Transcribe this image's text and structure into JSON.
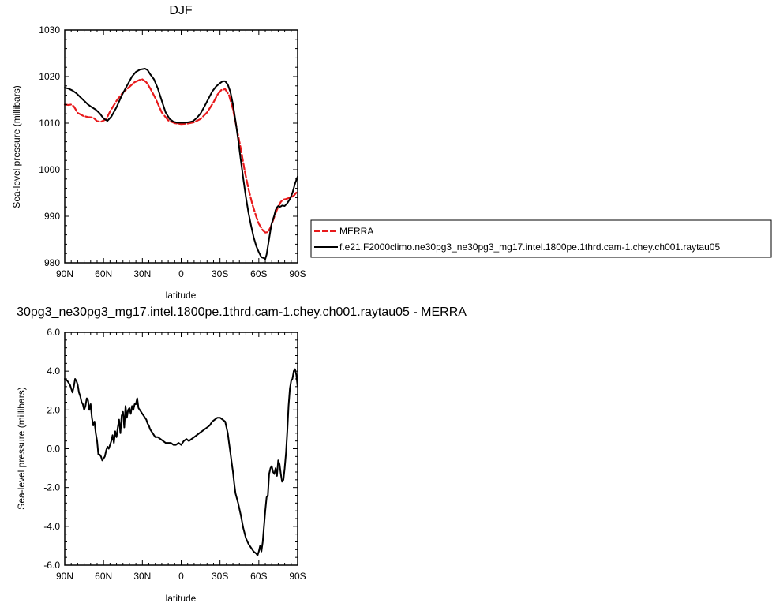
{
  "chart_data": [
    {
      "type": "line",
      "title": "DJF",
      "xlabel": "latitude",
      "ylabel": "Sea-level pressure (millibars)",
      "xlim": [
        90,
        -90
      ],
      "ylim": [
        980,
        1030
      ],
      "x_ticks": [
        90,
        60,
        30,
        0,
        -30,
        -60,
        -90
      ],
      "x_tick_labels": [
        "90N",
        "60N",
        "30N",
        "0",
        "30S",
        "60S",
        "90S"
      ],
      "y_ticks": [
        980,
        990,
        1000,
        1010,
        1020,
        1030
      ],
      "y_tick_labels": [
        "980",
        "990",
        "1000",
        "1010",
        "1020",
        "1030"
      ],
      "grid": false,
      "legend_position": "right",
      "series": [
        {
          "name": "MERRA",
          "color": "#e8191b",
          "dash": "dashed",
          "x": [
            90,
            87,
            85,
            83,
            80,
            76,
            72,
            68,
            65,
            62,
            58,
            55,
            50,
            45,
            40,
            36,
            32,
            30,
            27,
            24,
            20,
            15,
            10,
            5,
            0,
            -5,
            -10,
            -15,
            -20,
            -25,
            -28,
            -31,
            -34,
            -37,
            -40,
            -43,
            -46,
            -49,
            -52,
            -55,
            -58,
            -60,
            -63,
            -65,
            -67,
            -69,
            -71,
            -73,
            -75,
            -77,
            -79,
            -81,
            -83,
            -85,
            -87,
            -90
          ],
          "y": [
            1014,
            1013.9,
            1014,
            1013.6,
            1012.2,
            1011.6,
            1011.3,
            1011.2,
            1010.4,
            1010.3,
            1010.8,
            1012.5,
            1014.8,
            1016.6,
            1017.8,
            1018.8,
            1019.3,
            1019.4,
            1018.8,
            1017.5,
            1015.4,
            1012.3,
            1010.6,
            1010.0,
            1009.8,
            1009.9,
            1010.2,
            1010.9,
            1012.3,
            1014.5,
            1016.1,
            1017.1,
            1017.3,
            1016.0,
            1013.0,
            1008.8,
            1004.6,
            999.9,
            995.9,
            992.6,
            989.9,
            988.4,
            987.0,
            986.5,
            986.6,
            987.6,
            989.1,
            990.7,
            992.0,
            993.1,
            993.6,
            993.7,
            993.9,
            994.1,
            994.4,
            995.4
          ]
        },
        {
          "name": "f.e21.F2000climo.ne30pg3_ne30pg3_mg17.intel.1800pe.1thrd.cam-1.chey.ch001.raytau05",
          "color": "#000000",
          "dash": "solid",
          "x": [
            90,
            87,
            84,
            81,
            78,
            75,
            72,
            69,
            66,
            63,
            60,
            57,
            54,
            50,
            46,
            42,
            38,
            35,
            32,
            30,
            28,
            26,
            24,
            21,
            18,
            15,
            12,
            9,
            6,
            3,
            0,
            -3,
            -6,
            -9,
            -12,
            -15,
            -18,
            -21,
            -24,
            -27,
            -30,
            -32,
            -34,
            -36,
            -38,
            -40,
            -42,
            -44,
            -46,
            -48,
            -50,
            -52,
            -54,
            -56,
            -58,
            -60,
            -62,
            -64,
            -65,
            -66,
            -67,
            -68,
            -69,
            -70,
            -72,
            -73,
            -74,
            -75,
            -76,
            -77,
            -78,
            -80,
            -82,
            -84,
            -86,
            -88,
            -90
          ],
          "y": [
            1017.6,
            1017.4,
            1017.0,
            1016.4,
            1015.6,
            1014.8,
            1014.0,
            1013.4,
            1012.9,
            1012.1,
            1011.0,
            1010.5,
            1011.4,
            1013.4,
            1015.9,
            1018.0,
            1020.0,
            1021.0,
            1021.5,
            1021.6,
            1021.7,
            1021.4,
            1020.5,
            1019.4,
            1017.4,
            1014.8,
            1012.3,
            1010.9,
            1010.3,
            1010.1,
            1010.1,
            1010.1,
            1010.2,
            1010.4,
            1011.1,
            1012.1,
            1013.6,
            1015.2,
            1016.8,
            1017.9,
            1018.6,
            1019.0,
            1019.0,
            1018.3,
            1016.7,
            1014.0,
            1010.5,
            1006.6,
            1002.2,
            998.0,
            994.2,
            990.8,
            988.0,
            985.5,
            983.6,
            982.3,
            981.2,
            981.0,
            980.8,
            981.8,
            983.5,
            985.2,
            987.0,
            988.5,
            990.2,
            991.3,
            991.9,
            992.2,
            992.0,
            992.1,
            992.3,
            992.2,
            992.8,
            993.7,
            995.0,
            997.0,
            998.5
          ]
        }
      ]
    },
    {
      "type": "line",
      "title": "30pg3_ne30pg3_mg17.intel.1800pe.1thrd.cam-1.chey.ch001.raytau05 - MERRA",
      "xlabel": "latitude",
      "ylabel": "Sea-level pressure (millibars)",
      "xlim": [
        90,
        -90
      ],
      "ylim": [
        -6,
        6
      ],
      "x_ticks": [
        90,
        60,
        30,
        0,
        -30,
        -60,
        -90
      ],
      "x_tick_labels": [
        "90N",
        "60N",
        "30N",
        "0",
        "30S",
        "60S",
        "90S"
      ],
      "y_ticks": [
        -6,
        -4,
        -2,
        0,
        2,
        4,
        6
      ],
      "y_tick_labels": [
        "-6.0",
        "-4.0",
        "-2.0",
        "0.0",
        "2.0",
        "4.0",
        "6.0"
      ],
      "grid": false,
      "series": [
        {
          "color": "#000000",
          "dash": "solid",
          "x": [
            90,
            88,
            86,
            84,
            83,
            82,
            81,
            80,
            79,
            78,
            77,
            76,
            75,
            74,
            73,
            72,
            71,
            70,
            69,
            68,
            67,
            66,
            65,
            64,
            63,
            62,
            61,
            60,
            59,
            58,
            57,
            56,
            55,
            54,
            53,
            52,
            51,
            50,
            49,
            48,
            47,
            46,
            45,
            44,
            43,
            42,
            41,
            40,
            39,
            38,
            37,
            36,
            35,
            34,
            33,
            32,
            31,
            30,
            29,
            28,
            27,
            26,
            25,
            24,
            22,
            20,
            18,
            16,
            14,
            12,
            10,
            8,
            6,
            4,
            2,
            0,
            -2,
            -4,
            -6,
            -8,
            -10,
            -12,
            -14,
            -16,
            -18,
            -20,
            -22,
            -24,
            -26,
            -28,
            -30,
            -32,
            -34,
            -35,
            -36,
            -37,
            -38,
            -39,
            -40,
            -41,
            -42,
            -44,
            -46,
            -48,
            -50,
            -52,
            -54,
            -56,
            -58,
            -59,
            -60,
            -61,
            -62,
            -63,
            -64,
            -65,
            -66,
            -67,
            -68,
            -69,
            -70,
            -71,
            -72,
            -73,
            -74,
            -75,
            -76,
            -77,
            -78,
            -79,
            -80,
            -81,
            -82,
            -83,
            -84,
            -85,
            -86,
            -87,
            -88,
            -89,
            -90
          ],
          "y": [
            3.6,
            3.5,
            3.3,
            2.9,
            3.2,
            3.6,
            3.5,
            3.3,
            2.9,
            2.7,
            2.4,
            2.3,
            2.0,
            2.2,
            2.6,
            2.5,
            2.0,
            2.3,
            1.6,
            1.2,
            1.4,
            0.8,
            0.4,
            -0.3,
            -0.3,
            -0.4,
            -0.6,
            -0.5,
            -0.4,
            -0.1,
            0.1,
            0.0,
            0.2,
            0.4,
            0.7,
            0.3,
            0.9,
            0.6,
            1.1,
            1.5,
            0.8,
            1.7,
            1.9,
            1.1,
            2.2,
            1.6,
            2.0,
            2.1,
            1.8,
            2.2,
            2.0,
            2.3,
            2.3,
            2.6,
            2.1,
            2.0,
            1.9,
            1.8,
            1.7,
            1.6,
            1.5,
            1.3,
            1.2,
            1.0,
            0.8,
            0.6,
            0.6,
            0.5,
            0.4,
            0.3,
            0.3,
            0.3,
            0.2,
            0.2,
            0.3,
            0.2,
            0.4,
            0.5,
            0.4,
            0.5,
            0.6,
            0.7,
            0.8,
            0.9,
            1.0,
            1.1,
            1.2,
            1.4,
            1.5,
            1.6,
            1.6,
            1.5,
            1.4,
            1.1,
            0.8,
            0.3,
            -0.2,
            -0.7,
            -1.2,
            -1.8,
            -2.3,
            -2.8,
            -3.4,
            -4.1,
            -4.6,
            -4.9,
            -5.1,
            -5.3,
            -5.4,
            -5.5,
            -5.3,
            -5.0,
            -5.3,
            -4.8,
            -4.0,
            -3.2,
            -2.5,
            -2.4,
            -1.3,
            -1.0,
            -0.9,
            -1.2,
            -1.3,
            -1.0,
            -1.4,
            -0.6,
            -0.8,
            -1.3,
            -1.7,
            -1.6,
            -1.0,
            -0.2,
            0.9,
            2.2,
            3.1,
            3.5,
            3.6,
            4.0,
            4.1,
            3.8,
            3.2
          ]
        }
      ]
    }
  ]
}
